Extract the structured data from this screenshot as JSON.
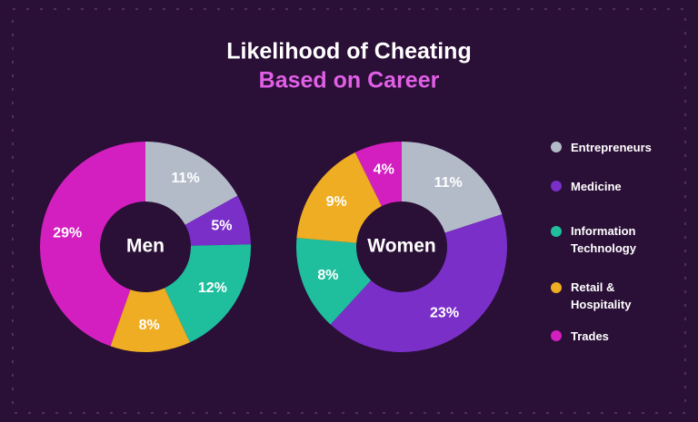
{
  "chart_data": {
    "type": "pie",
    "title": "Likelihood of Cheating",
    "subtitle": "Based on Career",
    "categories": [
      "Entrepreneurs",
      "Medicine",
      "Information Technology",
      "Retail & Hospitality",
      "Trades"
    ],
    "colors": [
      "#b3bbc9",
      "#7a2fc8",
      "#1fbf9e",
      "#eead22",
      "#d41fc0"
    ],
    "series": [
      {
        "name": "Men",
        "values": [
          11,
          5,
          12,
          8,
          29
        ],
        "value_labels": [
          "11%",
          "5%",
          "12%",
          "8%",
          "29%"
        ]
      },
      {
        "name": "Women",
        "values": [
          11,
          23,
          8,
          9,
          4
        ],
        "value_labels": [
          "11%",
          "23%",
          "8%",
          "9%",
          "4%"
        ]
      }
    ]
  }
}
